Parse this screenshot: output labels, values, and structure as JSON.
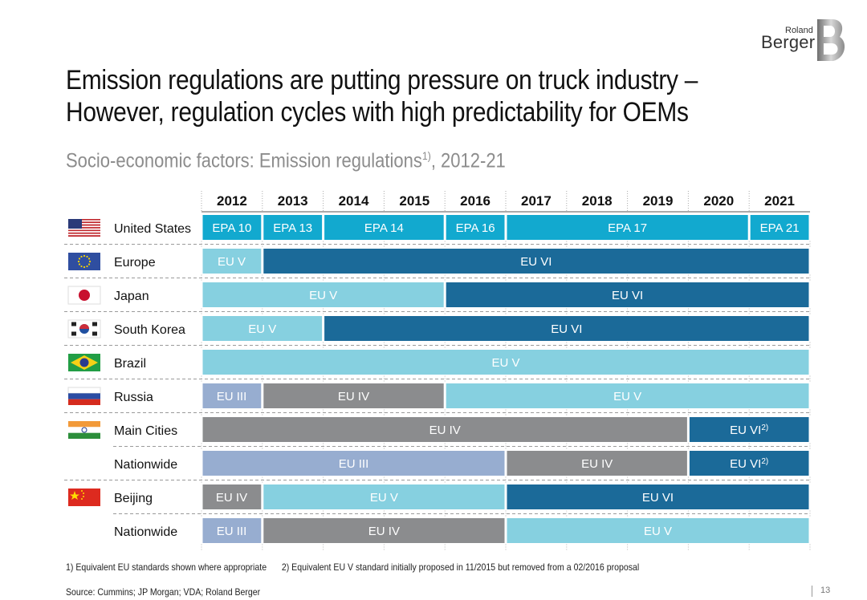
{
  "brand": {
    "small": "Roland",
    "big": "Berger"
  },
  "title_line1": "Emission regulations are putting pressure on truck industry –",
  "title_line2": "However, regulation cycles with high predictability for OEMs",
  "subtitle": {
    "text": "Socio-economic factors: Emission regulations",
    "sup": "1)",
    "tail": ", 2012-21"
  },
  "chart_data": {
    "type": "timeline",
    "years": [
      "2012",
      "2013",
      "2014",
      "2015",
      "2016",
      "2017",
      "2018",
      "2019",
      "2020",
      "2021"
    ],
    "colors": {
      "light": "#86d0e0",
      "dark": "#1b6a99",
      "epa": "#12a9cf",
      "grey": "#8b8c8e",
      "lavender": "#97add0"
    },
    "rows": [
      {
        "label": "United States",
        "flag": "us",
        "segments": [
          {
            "label": "EPA 10",
            "start": 0,
            "end": 1,
            "color": "epa"
          },
          {
            "label": "EPA 13",
            "start": 1,
            "end": 2,
            "color": "epa"
          },
          {
            "label": "EPA 14",
            "start": 2,
            "end": 4,
            "color": "epa"
          },
          {
            "label": "EPA 16",
            "start": 4,
            "end": 5,
            "color": "epa"
          },
          {
            "label": "EPA 17",
            "start": 5,
            "end": 9,
            "color": "epa"
          },
          {
            "label": "EPA 21",
            "start": 9,
            "end": 10,
            "color": "epa"
          }
        ]
      },
      {
        "label": "Europe",
        "flag": "eu",
        "segments": [
          {
            "label": "EU V",
            "start": 0,
            "end": 1,
            "color": "light",
            "align": "left"
          },
          {
            "label": "EU VI",
            "start": 1,
            "end": 10,
            "color": "dark"
          }
        ]
      },
      {
        "label": "Japan",
        "flag": "jp",
        "segments": [
          {
            "label": "EU V",
            "start": 0,
            "end": 4,
            "color": "light"
          },
          {
            "label": "EU VI",
            "start": 4,
            "end": 10,
            "color": "dark"
          }
        ]
      },
      {
        "label": "South Korea",
        "flag": "kr",
        "segments": [
          {
            "label": "EU V",
            "start": 0,
            "end": 2,
            "color": "light"
          },
          {
            "label": "EU VI",
            "start": 2,
            "end": 10,
            "color": "dark"
          }
        ]
      },
      {
        "label": "Brazil",
        "flag": "br",
        "segments": [
          {
            "label": "EU V",
            "start": 0,
            "end": 10,
            "color": "light"
          }
        ]
      },
      {
        "label": "Russia",
        "flag": "ru",
        "segments": [
          {
            "label": "EU III",
            "start": 0,
            "end": 1,
            "color": "lavender",
            "align": "left"
          },
          {
            "label": "EU IV",
            "start": 1,
            "end": 4,
            "color": "grey"
          },
          {
            "label": "EU V",
            "start": 4,
            "end": 10,
            "color": "light"
          }
        ]
      },
      {
        "label": "Main Cities",
        "flag": "in",
        "segments": [
          {
            "label": "EU IV",
            "start": 0,
            "end": 8,
            "color": "grey"
          },
          {
            "label": "EU VI",
            "sup": "2)",
            "start": 8,
            "end": 10,
            "color": "dark"
          }
        ]
      },
      {
        "label": "Nationwide",
        "flag": "",
        "segments": [
          {
            "label": "EU III",
            "start": 0,
            "end": 5,
            "color": "lavender"
          },
          {
            "label": "EU IV",
            "start": 5,
            "end": 8,
            "color": "grey"
          },
          {
            "label": "EU VI",
            "sup": "2)",
            "start": 8,
            "end": 10,
            "color": "dark"
          }
        ]
      },
      {
        "label": "Beijing",
        "flag": "cn",
        "segments": [
          {
            "label": "EU IV",
            "start": 0,
            "end": 1,
            "color": "grey",
            "align": "left"
          },
          {
            "label": "EU V",
            "start": 1,
            "end": 5,
            "color": "light"
          },
          {
            "label": "EU VI",
            "start": 5,
            "end": 10,
            "color": "dark"
          }
        ]
      },
      {
        "label": "Nationwide",
        "flag": "",
        "segments": [
          {
            "label": "EU III",
            "start": 0,
            "end": 1,
            "color": "lavender",
            "align": "left"
          },
          {
            "label": "EU IV",
            "start": 1,
            "end": 5,
            "color": "grey"
          },
          {
            "label": "EU V",
            "start": 5,
            "end": 10,
            "color": "light"
          }
        ]
      }
    ]
  },
  "footnote1": "1) Equivalent EU standards shown where appropriate",
  "footnote2": "2) Equivalent EU V standard initially proposed in 11/2015 but removed from a 02/2016 proposal",
  "source": "Source: Cummins; JP Morgan; VDA; Roland Berger",
  "page_number": "13"
}
